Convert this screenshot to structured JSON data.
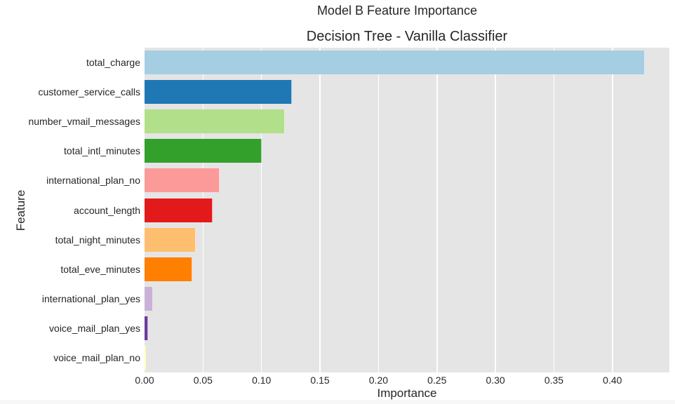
{
  "figure": {
    "suptitle": "Model B Feature Importance",
    "title": "Decision Tree - Vanilla Classifier",
    "xlabel": "Importance",
    "ylabel": "Feature",
    "background": "#e5e5e5"
  },
  "chart_data": {
    "type": "bar",
    "orientation": "horizontal",
    "title": "Decision Tree - Vanilla Classifier",
    "suptitle": "Model B Feature Importance",
    "xlabel": "Importance",
    "ylabel": "Feature",
    "xlim": [
      0,
      0.45
    ],
    "grid": true,
    "xticks": [
      "0.00",
      "0.05",
      "0.10",
      "0.15",
      "0.20",
      "0.25",
      "0.30",
      "0.35",
      "0.40"
    ],
    "categories": [
      "total_charge",
      "customer_service_calls",
      "number_vmail_messages",
      "total_intl_minutes",
      "international_plan_no",
      "account_length",
      "total_night_minutes",
      "total_eve_minutes",
      "international_plan_yes",
      "voice_mail_plan_yes",
      "voice_mail_plan_no"
    ],
    "values": [
      0.428,
      0.126,
      0.12,
      0.1,
      0.064,
      0.058,
      0.044,
      0.041,
      0.007,
      0.003,
      0.001
    ],
    "colors": [
      "#a6cee3",
      "#1f78b4",
      "#b2df8a",
      "#33a02c",
      "#fb9a99",
      "#e31a1c",
      "#fdbf6f",
      "#ff7f00",
      "#cab2d6",
      "#6a3d9a",
      "#ffff99"
    ]
  }
}
